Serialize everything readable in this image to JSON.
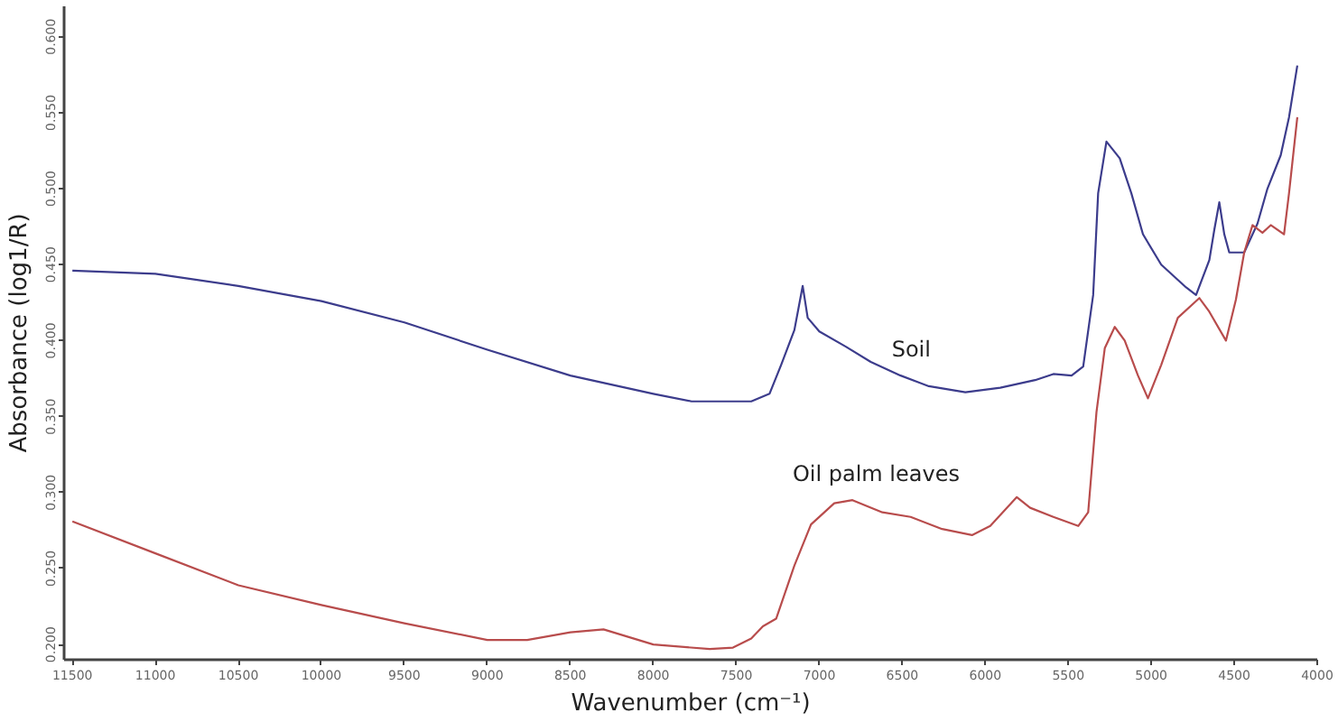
{
  "chart_data": {
    "type": "line",
    "xlabel": "Wavenumber (cm⁻¹)",
    "ylabel": "Absorbance (log1/R)",
    "xlim": [
      11550,
      4000
    ],
    "ylim": [
      0.19,
      0.62
    ],
    "xticks": [
      11500,
      11000,
      10500,
      10000,
      9500,
      9000,
      8500,
      8000,
      7500,
      7000,
      6500,
      6000,
      5500,
      5000,
      4500,
      4000
    ],
    "yticks": [
      {
        "value": 0.2,
        "label": "0.200"
      },
      {
        "value": 0.25,
        "label": "0.250"
      },
      {
        "value": 0.3,
        "label": "0.300"
      },
      {
        "value": 0.35,
        "label": "0.350"
      },
      {
        "value": 0.4,
        "label": "0.400"
      },
      {
        "value": 0.45,
        "label": "0.450"
      },
      {
        "value": 0.5,
        "label": "0.500"
      },
      {
        "value": 0.55,
        "label": "0.550"
      },
      {
        "value": 0.6,
        "label": "0.600"
      }
    ],
    "grid": false,
    "series": [
      {
        "name": "Soil",
        "color": "#3c3c8c",
        "x": [
          11500,
          11000,
          10500,
          10000,
          9500,
          9000,
          8500,
          8000,
          7770,
          7410,
          7300,
          7230,
          7150,
          7100,
          7070,
          7000,
          6840,
          6690,
          6510,
          6340,
          6120,
          5910,
          5700,
          5590,
          5480,
          5410,
          5350,
          5320,
          5270,
          5190,
          5120,
          5050,
          4940,
          4790,
          4730,
          4650,
          4620,
          4590,
          4560,
          4530,
          4440,
          4360,
          4300,
          4220,
          4170,
          4120
        ],
        "values": [
          0.446,
          0.444,
          0.436,
          0.426,
          0.412,
          0.394,
          0.377,
          0.365,
          0.36,
          0.36,
          0.365,
          0.384,
          0.407,
          0.436,
          0.415,
          0.406,
          0.396,
          0.386,
          0.377,
          0.37,
          0.366,
          0.369,
          0.374,
          0.378,
          0.377,
          0.383,
          0.43,
          0.497,
          0.531,
          0.52,
          0.497,
          0.47,
          0.45,
          0.435,
          0.43,
          0.453,
          0.473,
          0.491,
          0.47,
          0.458,
          0.458,
          0.477,
          0.5,
          0.522,
          0.547,
          0.581
        ]
      },
      {
        "name": "Oil palm leaves",
        "color": "#b84c4c",
        "x": [
          11500,
          11000,
          10500,
          10000,
          9500,
          9000,
          8760,
          8500,
          8300,
          8000,
          7660,
          7520,
          7410,
          7340,
          7260,
          7150,
          7050,
          6910,
          6800,
          6620,
          6450,
          6260,
          6080,
          5970,
          5810,
          5730,
          5590,
          5440,
          5380,
          5330,
          5280,
          5220,
          5160,
          5080,
          5020,
          4940,
          4840,
          4710,
          4650,
          4550,
          4490,
          4440,
          4390,
          4330,
          4280,
          4200,
          4170,
          4120
        ],
        "values": [
          0.281,
          0.26,
          0.239,
          0.226,
          0.214,
          0.203,
          0.203,
          0.208,
          0.21,
          0.2,
          0.197,
          0.198,
          0.204,
          0.212,
          0.217,
          0.252,
          0.279,
          0.293,
          0.295,
          0.287,
          0.284,
          0.276,
          0.272,
          0.278,
          0.297,
          0.29,
          0.284,
          0.278,
          0.287,
          0.353,
          0.395,
          0.409,
          0.4,
          0.377,
          0.362,
          0.384,
          0.415,
          0.428,
          0.419,
          0.4,
          0.427,
          0.458,
          0.476,
          0.471,
          0.476,
          0.47,
          0.497,
          0.547
        ]
      }
    ]
  }
}
